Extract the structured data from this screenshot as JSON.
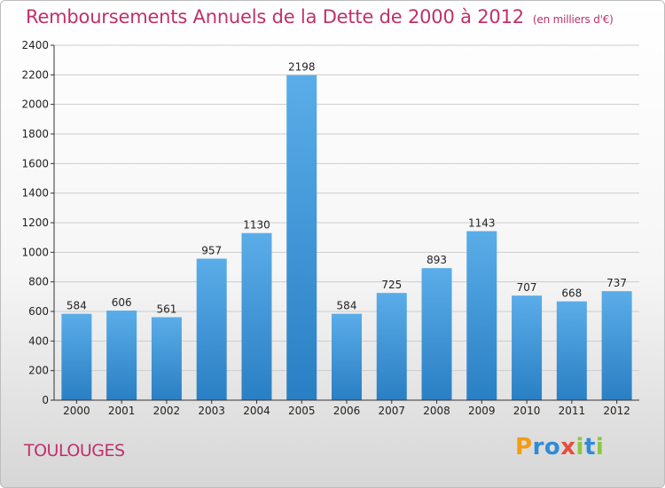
{
  "title": "Remboursements Annuels de la Dette de 2000 à 2012",
  "unit": "(en milliers d'€)",
  "commune": "TOULOUGES",
  "logo": {
    "letters": [
      "P",
      "r",
      "o",
      "x",
      "i",
      "t",
      "i"
    ],
    "colors": [
      "#f39c12",
      "#2e8bd6",
      "#2e8bd6",
      "#e74c3c",
      "#8dc63f",
      "#2e8bd6",
      "#8dc63f"
    ]
  },
  "colors": {
    "bar_light": "#5aade8",
    "bar_dark": "#2a7fc4",
    "grid": "#cccccc",
    "title": "#c0306a"
  },
  "chart_data": {
    "type": "bar",
    "categories": [
      "2000",
      "2001",
      "2002",
      "2003",
      "2004",
      "2005",
      "2006",
      "2007",
      "2008",
      "2009",
      "2010",
      "2011",
      "2012"
    ],
    "values": [
      584,
      606,
      561,
      957,
      1130,
      2198,
      584,
      725,
      893,
      1143,
      707,
      668,
      737
    ],
    "data_labels": [
      "584",
      "606",
      "561",
      "957",
      "1130",
      "2198",
      "584",
      "725",
      "893",
      "1143",
      "707",
      "668",
      "737"
    ],
    "yticks": [
      0,
      200,
      400,
      600,
      800,
      1000,
      1200,
      1400,
      1600,
      1800,
      2000,
      2200,
      2400
    ],
    "ylim": [
      0,
      2400
    ],
    "grid": true,
    "legend": "none"
  }
}
